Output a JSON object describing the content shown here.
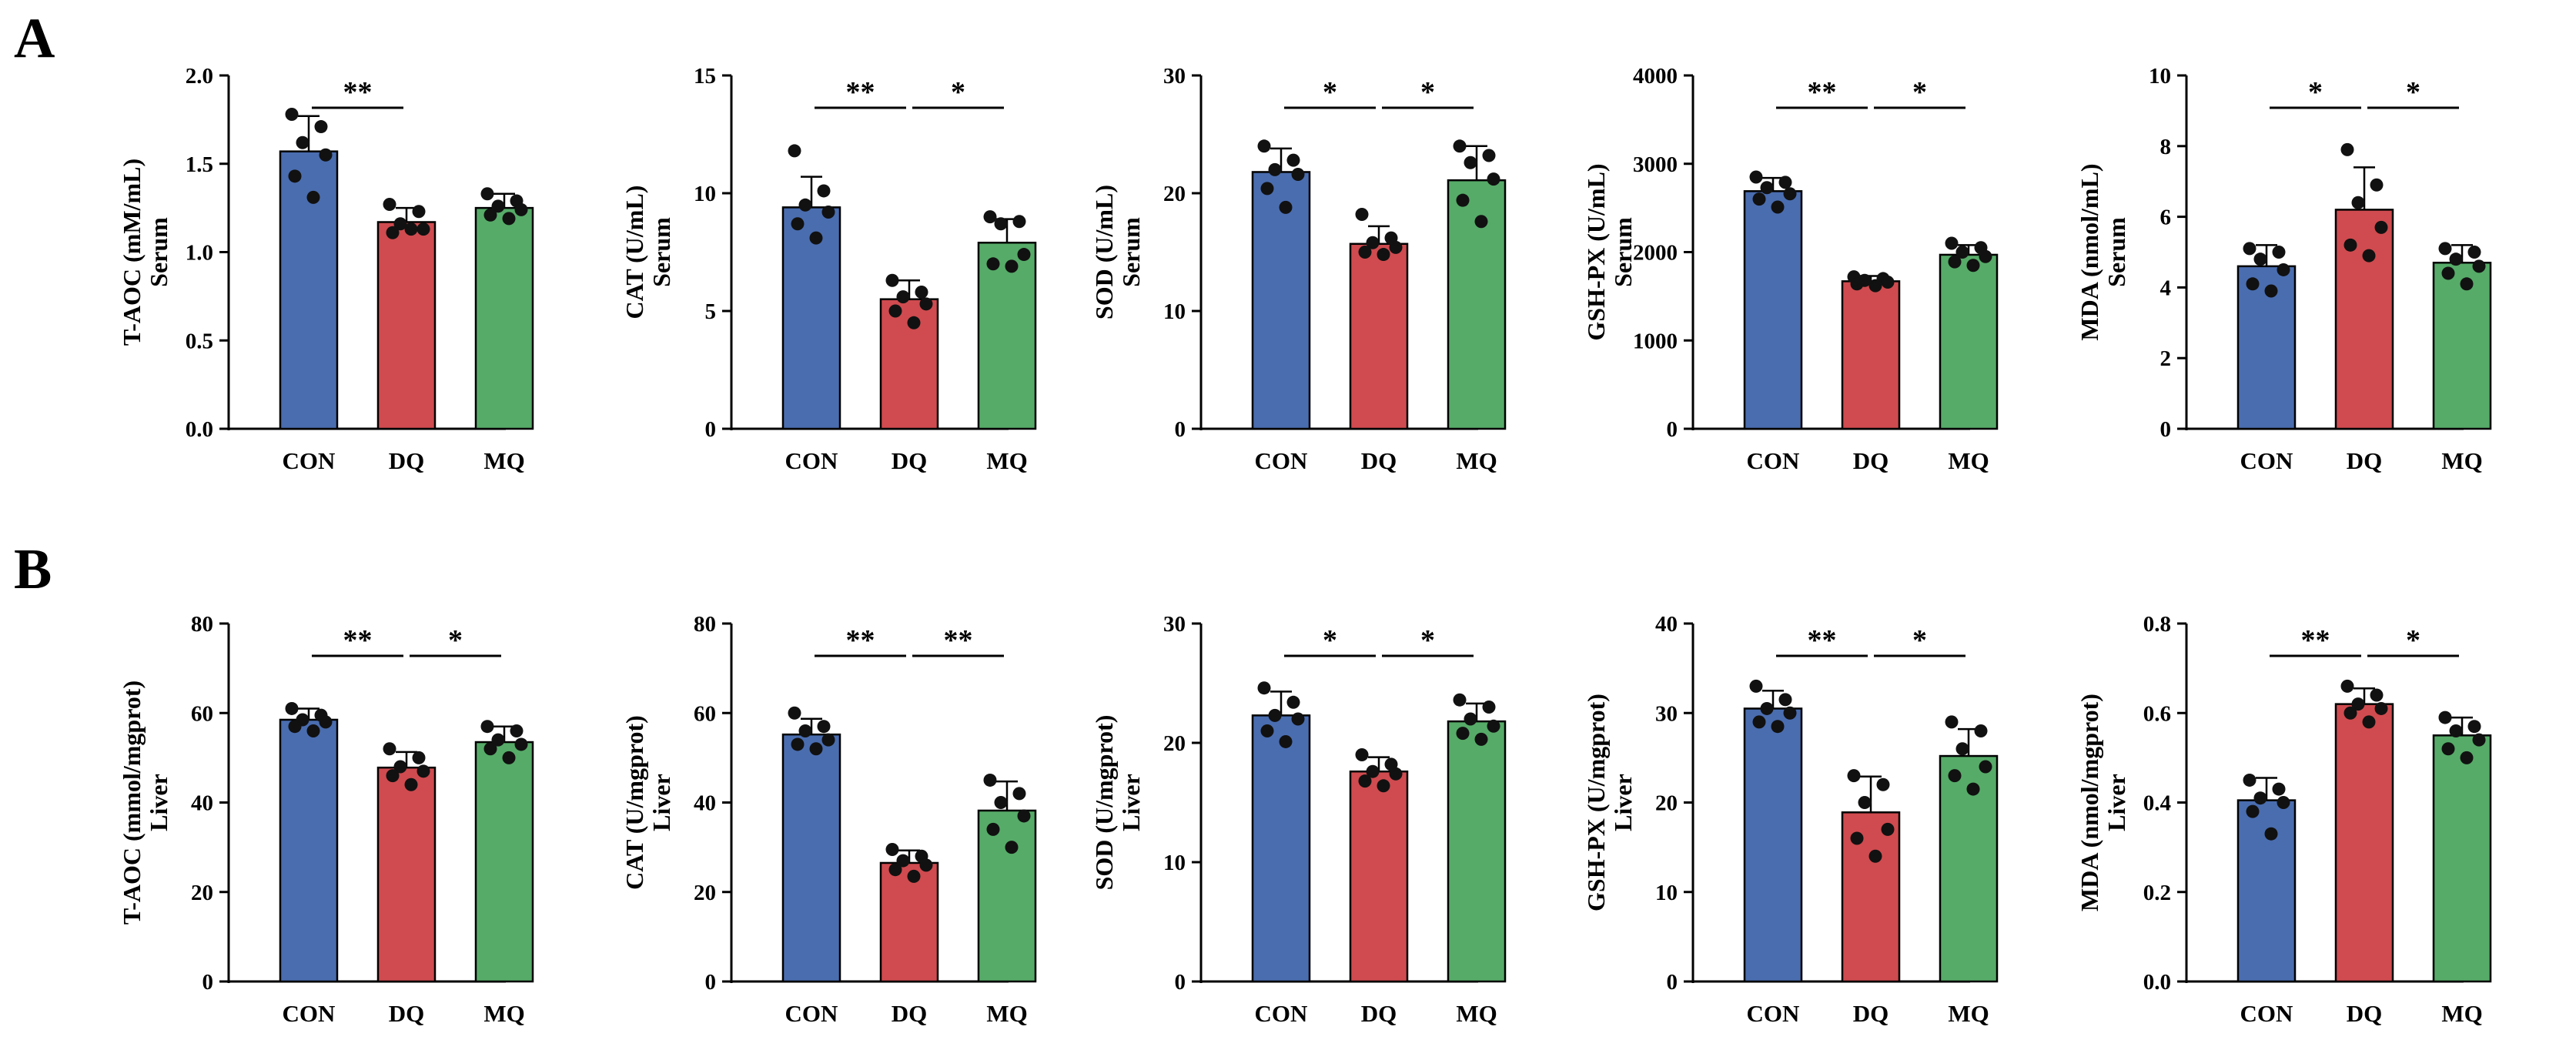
{
  "figure": {
    "panel_labels": [
      "A",
      "B"
    ]
  },
  "colors": {
    "CON": "#4a6daf",
    "DQ": "#cf4b4f",
    "MQ": "#56ab68",
    "axis": "#000000"
  },
  "chart_data": [
    {
      "type": "bar",
      "row": 0,
      "col": 0,
      "ylabel": "T-AOC (mM/mL)",
      "tissue": "Serum",
      "categories": [
        "CON",
        "DQ",
        "MQ"
      ],
      "values": [
        1.57,
        1.17,
        1.25
      ],
      "errors": [
        0.2,
        0.08,
        0.08
      ],
      "points": [
        [
          1.78,
          1.71,
          1.62,
          1.55,
          1.43,
          1.31
        ],
        [
          1.27,
          1.23,
          1.16,
          1.13,
          1.11,
          1.13
        ],
        [
          1.33,
          1.29,
          1.26,
          1.24,
          1.21,
          1.19
        ]
      ],
      "ylim": [
        0,
        2.0
      ],
      "ticks": [
        "0.0",
        "0.5",
        "1.0",
        "1.5",
        "2.0"
      ],
      "sig": [
        {
          "from": 0,
          "to": 1,
          "label": "**"
        }
      ]
    },
    {
      "type": "bar",
      "row": 0,
      "col": 1,
      "ylabel": "CAT (U/mL)",
      "tissue": "Serum",
      "categories": [
        "CON",
        "DQ",
        "MQ"
      ],
      "values": [
        9.4,
        5.5,
        7.9
      ],
      "errors": [
        1.3,
        0.8,
        1.0
      ],
      "points": [
        [
          11.8,
          10.1,
          9.5,
          9.2,
          8.7,
          8.1
        ],
        [
          6.3,
          5.8,
          5.6,
          5.3,
          5.0,
          4.5
        ],
        [
          9.0,
          8.8,
          8.7,
          7.4,
          7.0,
          6.9
        ]
      ],
      "ylim": [
        0,
        15
      ],
      "ticks": [
        "0",
        "5",
        "10",
        "15"
      ],
      "sig": [
        {
          "from": 0,
          "to": 1,
          "label": "**"
        },
        {
          "from": 1,
          "to": 2,
          "label": "*"
        }
      ]
    },
    {
      "type": "bar",
      "row": 0,
      "col": 2,
      "ylabel": "SOD (U/mL)",
      "tissue": "Serum",
      "categories": [
        "CON",
        "DQ",
        "MQ"
      ],
      "values": [
        21.8,
        15.7,
        21.1
      ],
      "errors": [
        2.0,
        1.5,
        2.9
      ],
      "points": [
        [
          24.0,
          22.8,
          22.0,
          21.6,
          20.4,
          18.8
        ],
        [
          18.2,
          16.2,
          15.8,
          15.4,
          15.0,
          14.8
        ],
        [
          24.0,
          23.2,
          22.6,
          21.2,
          19.4,
          17.6
        ]
      ],
      "ylim": [
        0,
        30
      ],
      "ticks": [
        "0",
        "10",
        "20",
        "30"
      ],
      "sig": [
        {
          "from": 0,
          "to": 1,
          "label": "*"
        },
        {
          "from": 1,
          "to": 2,
          "label": "*"
        }
      ]
    },
    {
      "type": "bar",
      "row": 0,
      "col": 3,
      "ylabel": "GSH-PX (U/mL)",
      "tissue": "Serum",
      "categories": [
        "CON",
        "DQ",
        "MQ"
      ],
      "values": [
        2690,
        1670,
        1970
      ],
      "errors": [
        150,
        60,
        110
      ],
      "points": [
        [
          2850,
          2790,
          2730,
          2660,
          2600,
          2510
        ],
        [
          1720,
          1700,
          1680,
          1660,
          1640,
          1620
        ],
        [
          2100,
          2050,
          2000,
          1950,
          1890,
          1850
        ]
      ],
      "ylim": [
        0,
        4000
      ],
      "ticks": [
        "0",
        "1000",
        "2000",
        "3000",
        "4000"
      ],
      "sig": [
        {
          "from": 0,
          "to": 1,
          "label": "**"
        },
        {
          "from": 1,
          "to": 2,
          "label": "*"
        }
      ]
    },
    {
      "type": "bar",
      "row": 0,
      "col": 4,
      "ylabel": "MDA (nmol/mL)",
      "tissue": "Serum",
      "categories": [
        "CON",
        "DQ",
        "MQ"
      ],
      "values": [
        4.6,
        6.2,
        4.7
      ],
      "errors": [
        0.6,
        1.2,
        0.5
      ],
      "points": [
        [
          5.1,
          5.0,
          4.8,
          4.5,
          4.1,
          3.9
        ],
        [
          7.9,
          6.9,
          6.4,
          5.7,
          5.2,
          4.9
        ],
        [
          5.1,
          5.0,
          4.8,
          4.6,
          4.4,
          4.1
        ]
      ],
      "ylim": [
        0,
        10
      ],
      "ticks": [
        "0",
        "2",
        "4",
        "6",
        "8",
        "10"
      ],
      "sig": [
        {
          "from": 0,
          "to": 1,
          "label": "*"
        },
        {
          "from": 1,
          "to": 2,
          "label": "*"
        }
      ]
    },
    {
      "type": "bar",
      "row": 1,
      "col": 0,
      "ylabel": "T-AOC (mmol/mgprot)",
      "tissue": "Liver",
      "categories": [
        "CON",
        "DQ",
        "MQ"
      ],
      "values": [
        58.5,
        47.8,
        53.5
      ],
      "errors": [
        2.5,
        3.5,
        3.5
      ],
      "points": [
        [
          61,
          59.5,
          58.5,
          58,
          57,
          56
        ],
        [
          52,
          50,
          48,
          47,
          46,
          44
        ],
        [
          57,
          56,
          54,
          53,
          52,
          50
        ]
      ],
      "ylim": [
        0,
        80
      ],
      "ticks": [
        "0",
        "20",
        "40",
        "60",
        "80"
      ],
      "sig": [
        {
          "from": 0,
          "to": 1,
          "label": "**"
        },
        {
          "from": 1,
          "to": 2,
          "label": "*"
        }
      ]
    },
    {
      "type": "bar",
      "row": 1,
      "col": 1,
      "ylabel": "CAT (U/mgprot)",
      "tissue": "Liver",
      "categories": [
        "CON",
        "DQ",
        "MQ"
      ],
      "values": [
        55.2,
        26.5,
        38.2
      ],
      "errors": [
        3.5,
        2.8,
        6.5
      ],
      "points": [
        [
          60,
          57,
          56,
          54,
          53,
          52
        ],
        [
          29.5,
          28,
          27,
          26,
          25,
          23.5
        ],
        [
          45,
          42,
          40,
          37,
          34,
          30
        ]
      ],
      "ylim": [
        0,
        80
      ],
      "ticks": [
        "0",
        "20",
        "40",
        "60",
        "80"
      ],
      "sig": [
        {
          "from": 0,
          "to": 1,
          "label": "**"
        },
        {
          "from": 1,
          "to": 2,
          "label": "**"
        }
      ]
    },
    {
      "type": "bar",
      "row": 1,
      "col": 2,
      "ylabel": "SOD (U/mgprot)",
      "tissue": "Liver",
      "categories": [
        "CON",
        "DQ",
        "MQ"
      ],
      "values": [
        22.3,
        17.6,
        21.8
      ],
      "errors": [
        2.0,
        1.2,
        1.5
      ],
      "points": [
        [
          24.6,
          23.4,
          22.3,
          22.0,
          21.0,
          20.1
        ],
        [
          19.0,
          18.2,
          17.6,
          17.4,
          16.8,
          16.4
        ],
        [
          23.6,
          23.0,
          22.0,
          21.4,
          20.8,
          20.3
        ]
      ],
      "ylim": [
        0,
        30
      ],
      "ticks": [
        "0",
        "10",
        "20",
        "30"
      ],
      "sig": [
        {
          "from": 0,
          "to": 1,
          "label": "*"
        },
        {
          "from": 1,
          "to": 2,
          "label": "*"
        }
      ]
    },
    {
      "type": "bar",
      "row": 1,
      "col": 3,
      "ylabel": "GSH-PX (U/mgprot)",
      "tissue": "Liver",
      "categories": [
        "CON",
        "DQ",
        "MQ"
      ],
      "values": [
        30.5,
        18.9,
        25.2
      ],
      "errors": [
        2.0,
        4.0,
        3.0
      ],
      "points": [
        [
          33,
          31.5,
          30.5,
          30,
          29,
          28.5
        ],
        [
          23,
          22,
          20,
          17,
          16,
          14
        ],
        [
          29,
          28,
          26,
          24,
          23,
          21.5
        ]
      ],
      "ylim": [
        0,
        40
      ],
      "ticks": [
        "0",
        "10",
        "20",
        "30",
        "40"
      ],
      "sig": [
        {
          "from": 0,
          "to": 1,
          "label": "**"
        },
        {
          "from": 1,
          "to": 2,
          "label": "*"
        }
      ]
    },
    {
      "type": "bar",
      "row": 1,
      "col": 4,
      "ylabel": "MDA (nmol/mgprot)",
      "tissue": "Liver",
      "categories": [
        "CON",
        "DQ",
        "MQ"
      ],
      "values": [
        0.405,
        0.62,
        0.55
      ],
      "errors": [
        0.05,
        0.035,
        0.04
      ],
      "points": [
        [
          0.45,
          0.43,
          0.41,
          0.4,
          0.38,
          0.33
        ],
        [
          0.66,
          0.64,
          0.62,
          0.61,
          0.6,
          0.58
        ],
        [
          0.59,
          0.57,
          0.56,
          0.54,
          0.52,
          0.5
        ]
      ],
      "ylim": [
        0,
        0.8
      ],
      "ticks": [
        "0.0",
        "0.2",
        "0.4",
        "0.6",
        "0.8"
      ],
      "sig": [
        {
          "from": 0,
          "to": 1,
          "label": "**"
        },
        {
          "from": 1,
          "to": 2,
          "label": "*"
        }
      ]
    }
  ]
}
